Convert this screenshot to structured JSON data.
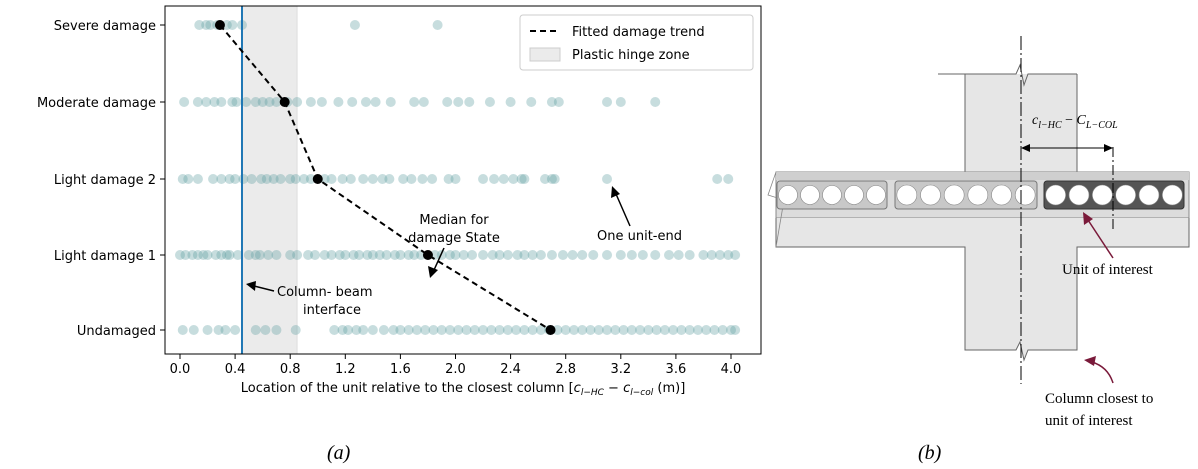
{
  "chart_data": {
    "type": "scatter",
    "categories": [
      "Undamaged",
      "Light damage 1",
      "Light damage 2",
      "Moderate damage",
      "Severe damage"
    ],
    "xlabel": "Location of the unit relative to the closest column [c_{l-HC} - c_{l-col} (m)]",
    "xlabel_prefix": "Location of the unit relative to the closest column [",
    "xlabel_math_a": "c",
    "xlabel_sub_a": "l−HC",
    "xlabel_minus": " − ",
    "xlabel_math_b": "c",
    "xlabel_sub_b": "l−col",
    "xlabel_suffix": " (m)]",
    "xlim": [
      -0.18,
      4.1
    ],
    "xticks": [
      "0.0",
      "0.4",
      "0.8",
      "1.2",
      "1.6",
      "2.0",
      "2.4",
      "2.8",
      "3.2",
      "3.6",
      "4.0"
    ],
    "xtick_values": [
      0.0,
      0.4,
      0.8,
      1.2,
      1.6,
      2.0,
      2.4,
      2.8,
      3.2,
      3.6,
      4.0
    ],
    "grid": false,
    "legend_position": "top-right",
    "colors": {
      "points": "#5f9ea0",
      "trend": "#000000",
      "interface_line": "#1f77b4",
      "hinge_zone": "#e8e8e8",
      "median": "#000000"
    },
    "plastic_hinge_zone": [
      0.45,
      0.85
    ],
    "column_beam_interface_x": 0.45,
    "series": [
      {
        "name": "Fitted damage trend",
        "type": "line",
        "points": [
          [
            0.29,
            "Severe damage"
          ],
          [
            0.76,
            "Moderate damage"
          ],
          [
            1.0,
            "Light damage 2"
          ],
          [
            1.8,
            "Light damage 1"
          ],
          [
            2.69,
            "Undamaged"
          ]
        ]
      },
      {
        "name": "Plastic hinge zone",
        "type": "band",
        "range": [
          0.45,
          0.85
        ]
      }
    ],
    "median_points": [
      {
        "category": "Severe damage",
        "x": 0.29
      },
      {
        "category": "Moderate damage",
        "x": 0.76
      },
      {
        "category": "Light damage 2",
        "x": 1.0
      },
      {
        "category": "Light damage 1",
        "x": 1.8
      },
      {
        "category": "Undamaged",
        "x": 2.69
      }
    ],
    "unit_ends": {
      "Severe damage": [
        0.14,
        0.19,
        0.22,
        0.27,
        0.34,
        0.38,
        0.45,
        1.27,
        1.87
      ],
      "Moderate damage": [
        0.03,
        0.13,
        0.19,
        0.25,
        0.3,
        0.38,
        0.41,
        0.48,
        0.55,
        0.6,
        0.65,
        0.7,
        0.78,
        0.85,
        0.95,
        1.03,
        1.15,
        1.25,
        1.35,
        1.42,
        1.53,
        1.7,
        1.77,
        1.94,
        2.02,
        2.1,
        2.25,
        2.4,
        2.55,
        2.7,
        2.75,
        3.1,
        3.2,
        3.45
      ],
      "Light damage 2": [
        0.02,
        0.06,
        0.13,
        0.24,
        0.3,
        0.36,
        0.4,
        0.46,
        0.52,
        0.59,
        0.63,
        0.68,
        0.73,
        0.8,
        0.84,
        0.9,
        0.95,
        1.05,
        1.1,
        1.18,
        1.24,
        1.33,
        1.4,
        1.47,
        1.52,
        1.62,
        1.68,
        1.76,
        1.83,
        1.95,
        2.0,
        2.2,
        2.28,
        2.35,
        2.42,
        2.48,
        2.5,
        2.65,
        2.7,
        2.72,
        3.1,
        3.9,
        3.98
      ],
      "Light damage 1": [
        0.0,
        0.04,
        0.09,
        0.13,
        0.17,
        0.2,
        0.26,
        0.3,
        0.34,
        0.36,
        0.42,
        0.5,
        0.55,
        0.58,
        0.64,
        0.7,
        0.8,
        0.85,
        0.93,
        0.98,
        1.05,
        1.1,
        1.16,
        1.2,
        1.26,
        1.3,
        1.36,
        1.4,
        1.45,
        1.5,
        1.56,
        1.6,
        1.66,
        1.7,
        1.75,
        1.85,
        1.9,
        1.96,
        2.0,
        2.06,
        2.12,
        2.2,
        2.27,
        2.32,
        2.38,
        2.45,
        2.5,
        2.56,
        2.62,
        2.7,
        2.78,
        2.85,
        2.92,
        3.0,
        3.1,
        3.2,
        3.28,
        3.36,
        3.45,
        3.55,
        3.62,
        3.7,
        3.8,
        3.86,
        3.92,
        3.98,
        4.03
      ],
      "Undamaged": [
        0.02,
        0.1,
        0.2,
        0.28,
        0.33,
        0.4,
        0.55,
        0.62,
        0.7,
        0.84,
        1.12,
        1.18,
        1.22,
        1.28,
        1.33,
        1.4,
        1.48,
        1.55,
        1.6,
        1.66,
        1.72,
        1.78,
        1.84,
        1.9,
        1.96,
        2.02,
        2.08,
        2.14,
        2.2,
        2.26,
        2.32,
        2.38,
        2.44,
        2.5,
        2.56,
        2.62,
        2.68,
        2.74,
        2.8,
        2.86,
        2.92,
        2.98,
        3.04,
        3.1,
        3.16,
        3.22,
        3.28,
        3.34,
        3.4,
        3.46,
        3.52,
        3.58,
        3.64,
        3.7,
        3.76,
        3.82,
        3.88,
        3.94,
        4.0,
        4.03
      ]
    },
    "annotations": {
      "median": [
        "Median for",
        "damage State"
      ],
      "unit_end": "One unit-end",
      "interface": [
        "Column- beam",
        "interface"
      ]
    }
  },
  "legend": {
    "trend": "Fitted damage trend",
    "hinge": "Plastic hinge zone"
  },
  "diagram": {
    "dim_label_c1": "c",
    "dim_label_sub1": "l−HC",
    "dim_label_minus": " − ",
    "dim_label_c2": "C",
    "dim_label_sub2": "L−COL",
    "unit_label": "Unit of interest",
    "column_label_line1": "Column closest to",
    "column_label_line2": "unit of interest"
  },
  "panels": {
    "a": "(a)",
    "b": "(b)"
  }
}
